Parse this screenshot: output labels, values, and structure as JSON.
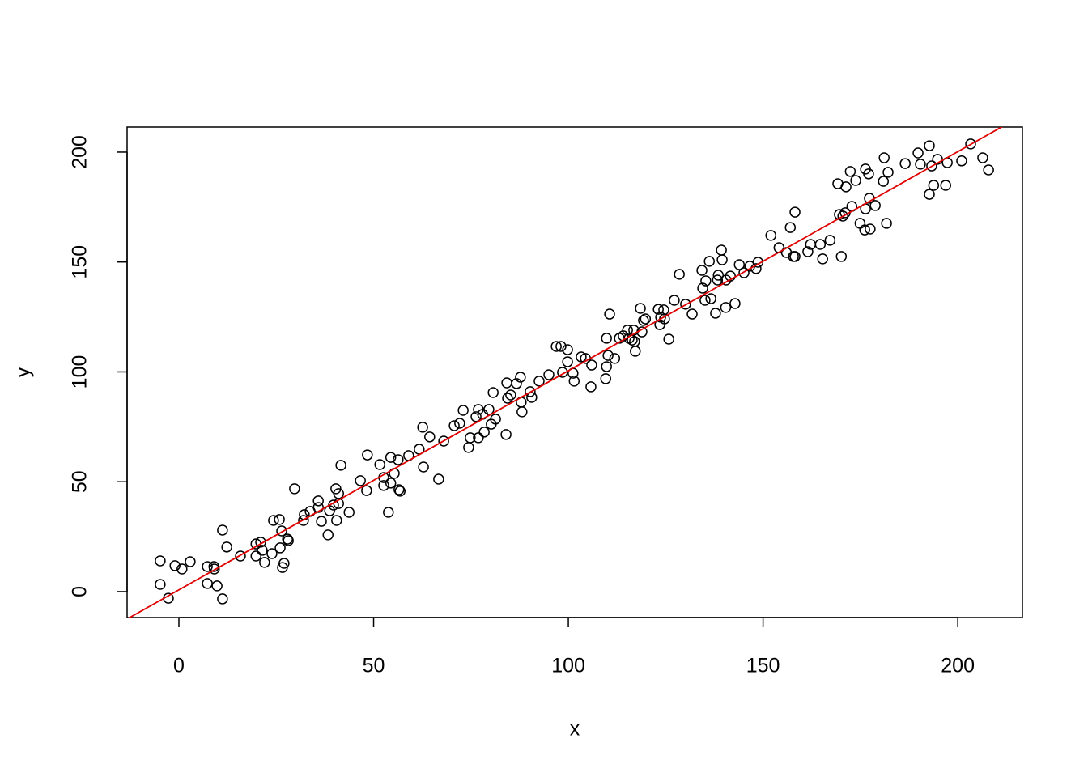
{
  "chart_data": {
    "type": "scatter",
    "x_label": "x",
    "y_label": "y",
    "xlim": [
      -13.3,
      216.6
    ],
    "ylim": [
      -11.8,
      211.4
    ],
    "xticks": [
      0,
      50,
      100,
      150,
      200
    ],
    "yticks": [
      0,
      50,
      100,
      150,
      200
    ],
    "grid": false,
    "series": [
      {
        "color": "#000000",
        "x": [
          -4.8,
          -4.8,
          -2.7,
          -1,
          0.8,
          2.9,
          7.3,
          7.3,
          9,
          9.1,
          9.8,
          11.2,
          11.2,
          12.3,
          15.8,
          19.8,
          19.8,
          21,
          21.4,
          22,
          23.9,
          24.3,
          25.8,
          26,
          26.4,
          26.6,
          27,
          27.9,
          28.1,
          29.7,
          32,
          32.2,
          33.7,
          35.8,
          35.8,
          36.6,
          38.3,
          38.7,
          39.7,
          40.3,
          40.5,
          41,
          41,
          41.6,
          43.7,
          46.6,
          48.2,
          48.4,
          51.6,
          52.6,
          52.6,
          53.8,
          54.4,
          54.4,
          55.3,
          56.3,
          56.5,
          56.8,
          59,
          61.7,
          62.6,
          62.8,
          64.4,
          66.7,
          68,
          70.7,
          72.1,
          73,
          74.4,
          74.8,
          76.3,
          76.9,
          76.9,
          78,
          78.4,
          79.6,
          80.2,
          80.7,
          81.3,
          84,
          84.2,
          84.4,
          85.2,
          86.7,
          87.7,
          87.9,
          88.1,
          90.2,
          90.6,
          92.5,
          95,
          96.9,
          98.1,
          98.5,
          99.8,
          99.8,
          101.2,
          101.5,
          103.3,
          104.4,
          105.8,
          106,
          109.6,
          109.8,
          109.8,
          110.2,
          110.6,
          111.9,
          113.1,
          114.1,
          115.2,
          115.6,
          116.4,
          116.8,
          117,
          117.2,
          118.5,
          118.9,
          119.3,
          119.8,
          123.1,
          123.5,
          123.7,
          124.5,
          124.7,
          125.8,
          127.2,
          128.5,
          130.1,
          131.8,
          134.3,
          134.5,
          135.1,
          135.3,
          136.2,
          136.6,
          137.8,
          138.3,
          138.5,
          139.3,
          139.5,
          140.4,
          140.5,
          141.6,
          142.8,
          143.9,
          145.1,
          146.6,
          148.2,
          148.7,
          152,
          154.1,
          156,
          157,
          157.8,
          158.2,
          158.2,
          161.5,
          162.2,
          164.7,
          165.3,
          167.2,
          169.2,
          169.6,
          170.1,
          170.5,
          171.1,
          171.3,
          172.4,
          172.8,
          173.8,
          174.9,
          176.1,
          176.3,
          176.3,
          177.1,
          177.3,
          177.5,
          178.8,
          180.9,
          181.1,
          181.7,
          182.1,
          186.5,
          189.8,
          190.4,
          192.7,
          192.7,
          193.3,
          193.8,
          194.8,
          196.9,
          197.3,
          201,
          203.3,
          206.4,
          207.9
        ],
        "values": [
          14,
          3.3,
          -3,
          11.8,
          10.3,
          13.6,
          11.4,
          3.7,
          11.4,
          10.3,
          2.6,
          28,
          -3.3,
          20.3,
          16.2,
          21.7,
          16.2,
          22.5,
          18.8,
          13.3,
          17.3,
          32.4,
          32.8,
          19.9,
          27.6,
          11,
          12.9,
          23.9,
          23.2,
          46.8,
          32.4,
          35,
          36.5,
          41.3,
          38.3,
          32,
          25.8,
          36.8,
          39.4,
          46.8,
          32.4,
          44.6,
          40.1,
          57.5,
          36.1,
          50.5,
          46,
          62.2,
          57.8,
          51.9,
          48.3,
          36.1,
          61.1,
          49.4,
          53.8,
          60,
          46.4,
          45.7,
          61.9,
          64.8,
          74.8,
          56.7,
          70.4,
          51.2,
          68.5,
          75.5,
          76.6,
          82.5,
          65.6,
          70,
          79.6,
          82.9,
          70,
          80.7,
          72.6,
          82.9,
          76.2,
          90.6,
          78.5,
          71.5,
          95,
          88,
          89.5,
          94.7,
          97.6,
          86.2,
          81.8,
          91,
          88.4,
          95.8,
          98.7,
          111.6,
          111.6,
          99.8,
          110.1,
          104.6,
          99.4,
          95.8,
          106.8,
          106.1,
          93.2,
          103.1,
          96.9,
          102.4,
          115.3,
          107.5,
          126.3,
          106.1,
          115.3,
          116.4,
          119,
          115.3,
          114.5,
          119,
          113.8,
          109.4,
          128.9,
          118.2,
          123.4,
          124.1,
          128.5,
          121.5,
          124.9,
          128.2,
          124.1,
          114.9,
          132.6,
          144.4,
          130.8,
          126.3,
          146.2,
          138.1,
          132.6,
          141.4,
          150.3,
          133.3,
          126.7,
          141.8,
          144,
          155.4,
          151,
          129.3,
          141.8,
          143.6,
          131.1,
          148.8,
          145.1,
          148.1,
          147,
          149.9,
          162.1,
          156.5,
          154.3,
          165.7,
          152.5,
          172.7,
          152.5,
          154.7,
          158,
          158,
          151.4,
          159.9,
          185.6,
          171.6,
          152.5,
          170.9,
          172.4,
          184.2,
          191.2,
          175.3,
          187.1,
          167.6,
          164.6,
          192.3,
          174.2,
          190.1,
          179,
          165,
          175.7,
          186.7,
          197.4,
          167.6,
          190.8,
          194.8,
          199.6,
          194.5,
          202.9,
          180.8,
          193.7,
          184.9,
          196.7,
          184.9,
          195.2,
          196,
          203.7,
          197.4,
          191.9
        ]
      }
    ],
    "fit": {
      "intercept": 0.8,
      "slope": 0.997,
      "color": "#e00000"
    }
  }
}
